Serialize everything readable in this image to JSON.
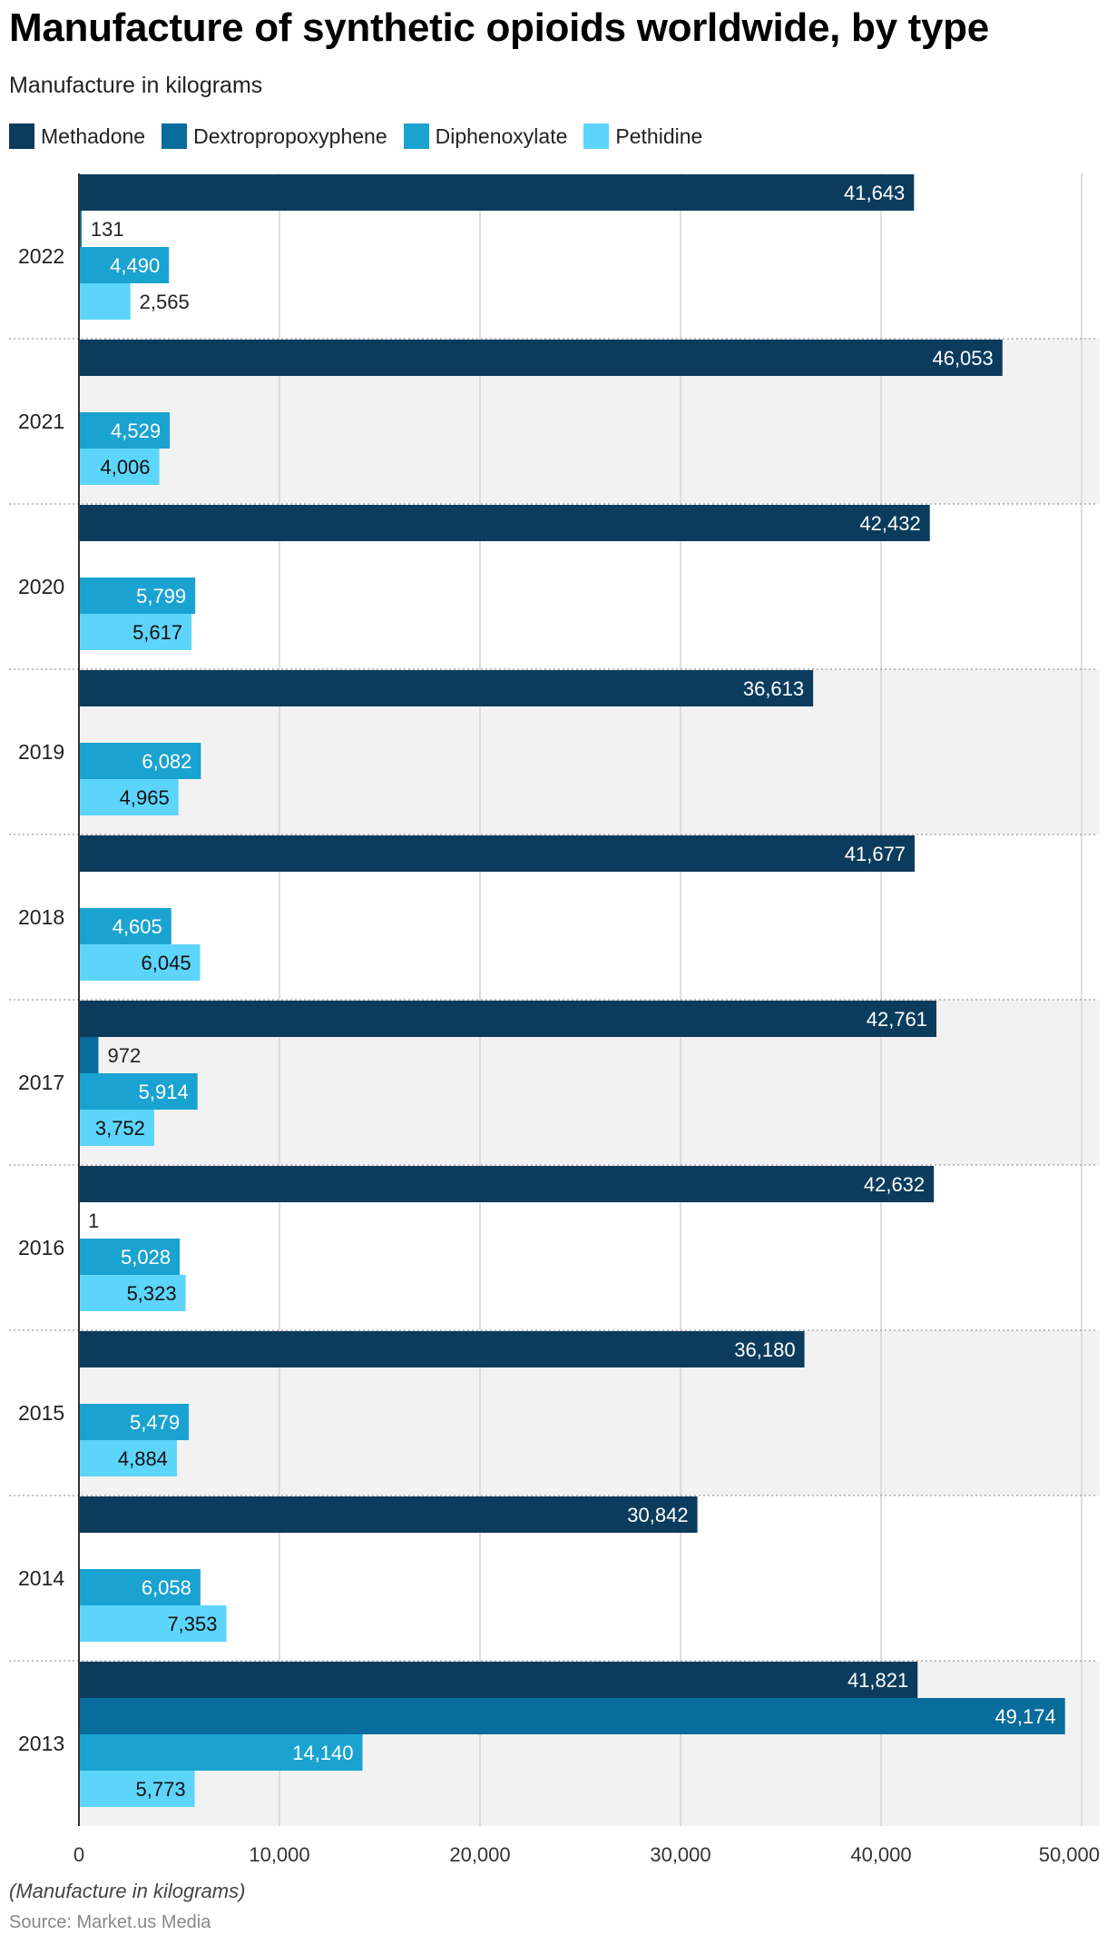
{
  "title": "Manufacture of synthetic opioids worldwide, by type",
  "subtitle": "Manufacture in kilograms",
  "footnote": "(Manufacture in kilograms)",
  "source": "Source: Market.us Media",
  "chart_data": {
    "type": "bar",
    "orientation": "horizontal",
    "title": "Manufacture of synthetic opioids worldwide, by type",
    "subtitle": "Manufacture in kilograms",
    "categories": [
      "2022",
      "2021",
      "2020",
      "2019",
      "2018",
      "2017",
      "2016",
      "2015",
      "2014",
      "2013"
    ],
    "series": [
      {
        "name": "Methadone",
        "color": "#0b3c5d",
        "values": [
          41643,
          46053,
          42432,
          36613,
          41677,
          42761,
          42632,
          36180,
          30842,
          41821
        ],
        "labels": [
          "41,643",
          "46,053",
          "42,432",
          "36,613",
          "41,677",
          "42,761",
          "42,632",
          "36,180",
          "30,842",
          "41,821"
        ]
      },
      {
        "name": "Dextropropoxyphene",
        "color": "#086c9c",
        "values": [
          131,
          null,
          null,
          null,
          null,
          972,
          1,
          null,
          null,
          49174
        ],
        "labels": [
          "131",
          null,
          null,
          null,
          null,
          "972",
          "1",
          null,
          null,
          "49,174"
        ]
      },
      {
        "name": "Diphenoxylate",
        "color": "#1aa3d1",
        "values": [
          4490,
          4529,
          5799,
          6082,
          4605,
          5914,
          5028,
          5479,
          6058,
          14140
        ],
        "labels": [
          "4,490",
          "4,529",
          "5,799",
          "6,082",
          "4,605",
          "5,914",
          "5,028",
          "5,479",
          "6,058",
          "14,140"
        ]
      },
      {
        "name": "Pethidine",
        "color": "#5dd5fb",
        "values": [
          2565,
          4006,
          5617,
          4965,
          6045,
          3752,
          5323,
          4884,
          7353,
          5773
        ],
        "labels": [
          "2,565",
          "4,006",
          "5,617",
          "4,965",
          "6,045",
          "3,752",
          "5,323",
          "4,884",
          "7,353",
          "5,773"
        ]
      }
    ],
    "xlim": [
      0,
      50000
    ],
    "xticks": [
      0,
      10000,
      20000,
      30000,
      40000,
      50000
    ],
    "xtick_labels": [
      "0",
      "10,000",
      "20,000",
      "30,000",
      "40,000",
      "50,000"
    ],
    "grid": true,
    "legend_position": "top-left",
    "band_colors": [
      "#ffffff",
      "#f2f2f2"
    ]
  }
}
